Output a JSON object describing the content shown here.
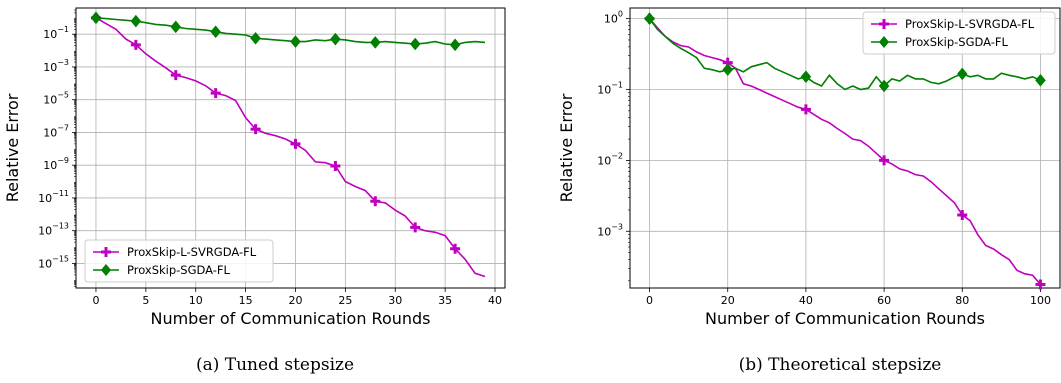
{
  "chart_data": [
    {
      "type": "line",
      "caption": "(a) Tuned stepsize",
      "xlabel": "Number of Communication Rounds",
      "ylabel": "Relative Error",
      "yscale": "log",
      "xlim": [
        -2,
        41
      ],
      "ylim_log10": [
        -16.5,
        0.6
      ],
      "xticks": [
        0,
        5,
        10,
        15,
        20,
        25,
        30,
        35,
        40
      ],
      "xtick_labels": [
        "0",
        "5",
        "10",
        "15",
        "20",
        "25",
        "30",
        "35",
        "40"
      ],
      "yticks_log10": [
        -1,
        -3,
        -5,
        -7,
        -9,
        -11,
        -13,
        -15
      ],
      "ytick_bases": [
        "10",
        "10",
        "10",
        "10",
        "10",
        "10",
        "10",
        "10"
      ],
      "ytick_exps": [
        "−1",
        "−3",
        "−5",
        "−7",
        "−9",
        "−11",
        "−13",
        "−15"
      ],
      "grid": true,
      "legend_position": "lower-left",
      "series": [
        {
          "name": "ProxSkip-L-SVRGDA-FL",
          "color": "#bf00bf",
          "marker": "plus",
          "marker_every": 4,
          "x": [
            0,
            1,
            2,
            3,
            4,
            5,
            6,
            7,
            8,
            9,
            10,
            11,
            12,
            13,
            14,
            15,
            16,
            17,
            18,
            19,
            20,
            21,
            22,
            23,
            24,
            25,
            26,
            27,
            28,
            29,
            30,
            31,
            32,
            33,
            34,
            35,
            36,
            37,
            38,
            39
          ],
          "y_log10": [
            0,
            -0.35,
            -0.7,
            -1.3,
            -1.65,
            -2.2,
            -2.65,
            -3.05,
            -3.5,
            -3.65,
            -3.85,
            -4.15,
            -4.6,
            -4.75,
            -5.05,
            -6.1,
            -6.8,
            -7.05,
            -7.2,
            -7.4,
            -7.7,
            -8.1,
            -8.8,
            -8.85,
            -9.05,
            -10.0,
            -10.3,
            -10.55,
            -11.2,
            -11.3,
            -11.75,
            -12.1,
            -12.8,
            -13.0,
            -13.1,
            -13.3,
            -14.1,
            -14.75,
            -15.6,
            -15.8
          ]
        },
        {
          "name": "ProxSkip-SGDA-FL",
          "color": "#007f00",
          "marker": "diamond",
          "marker_every": 4,
          "x": [
            0,
            1,
            2,
            3,
            4,
            5,
            6,
            7,
            8,
            9,
            10,
            11,
            12,
            13,
            14,
            15,
            16,
            17,
            18,
            19,
            20,
            21,
            22,
            23,
            24,
            25,
            26,
            27,
            28,
            29,
            30,
            31,
            32,
            33,
            34,
            35,
            36,
            37,
            38,
            39
          ],
          "y_log10": [
            0,
            -0.05,
            -0.1,
            -0.15,
            -0.2,
            -0.3,
            -0.4,
            -0.45,
            -0.55,
            -0.65,
            -0.7,
            -0.75,
            -0.85,
            -0.95,
            -1.0,
            -1.05,
            -1.25,
            -1.3,
            -1.35,
            -1.4,
            -1.45,
            -1.45,
            -1.35,
            -1.4,
            -1.3,
            -1.35,
            -1.45,
            -1.5,
            -1.5,
            -1.45,
            -1.5,
            -1.55,
            -1.6,
            -1.55,
            -1.45,
            -1.6,
            -1.65,
            -1.5,
            -1.45,
            -1.5
          ]
        }
      ]
    },
    {
      "type": "line",
      "caption": "(b) Theoretical stepsize",
      "xlabel": "Number of Communication Rounds",
      "ylabel": "Relative Error",
      "yscale": "log",
      "xlim": [
        -5,
        105
      ],
      "ylim_log10": [
        -3.8,
        0.15
      ],
      "xticks": [
        0,
        20,
        40,
        60,
        80,
        100
      ],
      "xtick_labels": [
        "0",
        "20",
        "40",
        "60",
        "80",
        "100"
      ],
      "yticks_log10": [
        0,
        -1,
        -2,
        -3
      ],
      "ytick_bases": [
        "10",
        "10",
        "10",
        "10"
      ],
      "ytick_exps": [
        "0",
        "−1",
        "−2",
        "−3"
      ],
      "grid": true,
      "legend_position": "upper-right",
      "series": [
        {
          "name": "ProxSkip-L-SVRGDA-FL",
          "color": "#bf00bf",
          "marker": "plus",
          "marker_every": 10,
          "x": [
            0,
            2,
            4,
            6,
            8,
            10,
            12,
            14,
            16,
            18,
            20,
            22,
            24,
            26,
            28,
            30,
            32,
            34,
            36,
            38,
            40,
            42,
            44,
            46,
            48,
            50,
            52,
            54,
            56,
            58,
            60,
            62,
            64,
            66,
            68,
            70,
            72,
            74,
            76,
            78,
            80,
            82,
            84,
            86,
            88,
            90,
            92,
            94,
            96,
            98,
            100
          ],
          "y_log10": [
            0,
            -0.13,
            -0.25,
            -0.33,
            -0.38,
            -0.4,
            -0.47,
            -0.52,
            -0.55,
            -0.58,
            -0.62,
            -0.7,
            -0.92,
            -0.95,
            -1.0,
            -1.05,
            -1.1,
            -1.15,
            -1.2,
            -1.25,
            -1.28,
            -1.35,
            -1.42,
            -1.47,
            -1.55,
            -1.62,
            -1.7,
            -1.72,
            -1.8,
            -1.9,
            -2.0,
            -2.05,
            -2.12,
            -2.15,
            -2.2,
            -2.22,
            -2.3,
            -2.4,
            -2.5,
            -2.6,
            -2.77,
            -2.85,
            -3.05,
            -3.2,
            -3.25,
            -3.33,
            -3.4,
            -3.55,
            -3.6,
            -3.62,
            -3.75
          ]
        },
        {
          "name": "ProxSkip-SGDA-FL",
          "color": "#007f00",
          "marker": "diamond",
          "marker_every": 10,
          "x": [
            0,
            2,
            4,
            6,
            8,
            10,
            12,
            14,
            16,
            18,
            20,
            22,
            24,
            26,
            28,
            30,
            32,
            34,
            36,
            38,
            40,
            42,
            44,
            46,
            48,
            50,
            52,
            54,
            56,
            58,
            60,
            62,
            64,
            66,
            68,
            70,
            72,
            74,
            76,
            78,
            80,
            82,
            84,
            86,
            88,
            90,
            92,
            94,
            96,
            98,
            100
          ],
          "y_log10": [
            0,
            -0.15,
            -0.25,
            -0.35,
            -0.42,
            -0.48,
            -0.55,
            -0.7,
            -0.72,
            -0.75,
            -0.72,
            -0.7,
            -0.75,
            -0.68,
            -0.65,
            -0.62,
            -0.7,
            -0.75,
            -0.8,
            -0.85,
            -0.82,
            -0.9,
            -0.95,
            -0.8,
            -0.92,
            -1.0,
            -0.95,
            -1.0,
            -0.98,
            -0.82,
            -0.95,
            -0.85,
            -0.88,
            -0.8,
            -0.85,
            -0.85,
            -0.9,
            -0.92,
            -0.88,
            -0.82,
            -0.78,
            -0.82,
            -0.8,
            -0.85,
            -0.85,
            -0.77,
            -0.8,
            -0.82,
            -0.85,
            -0.82,
            -0.87
          ]
        }
      ]
    }
  ]
}
